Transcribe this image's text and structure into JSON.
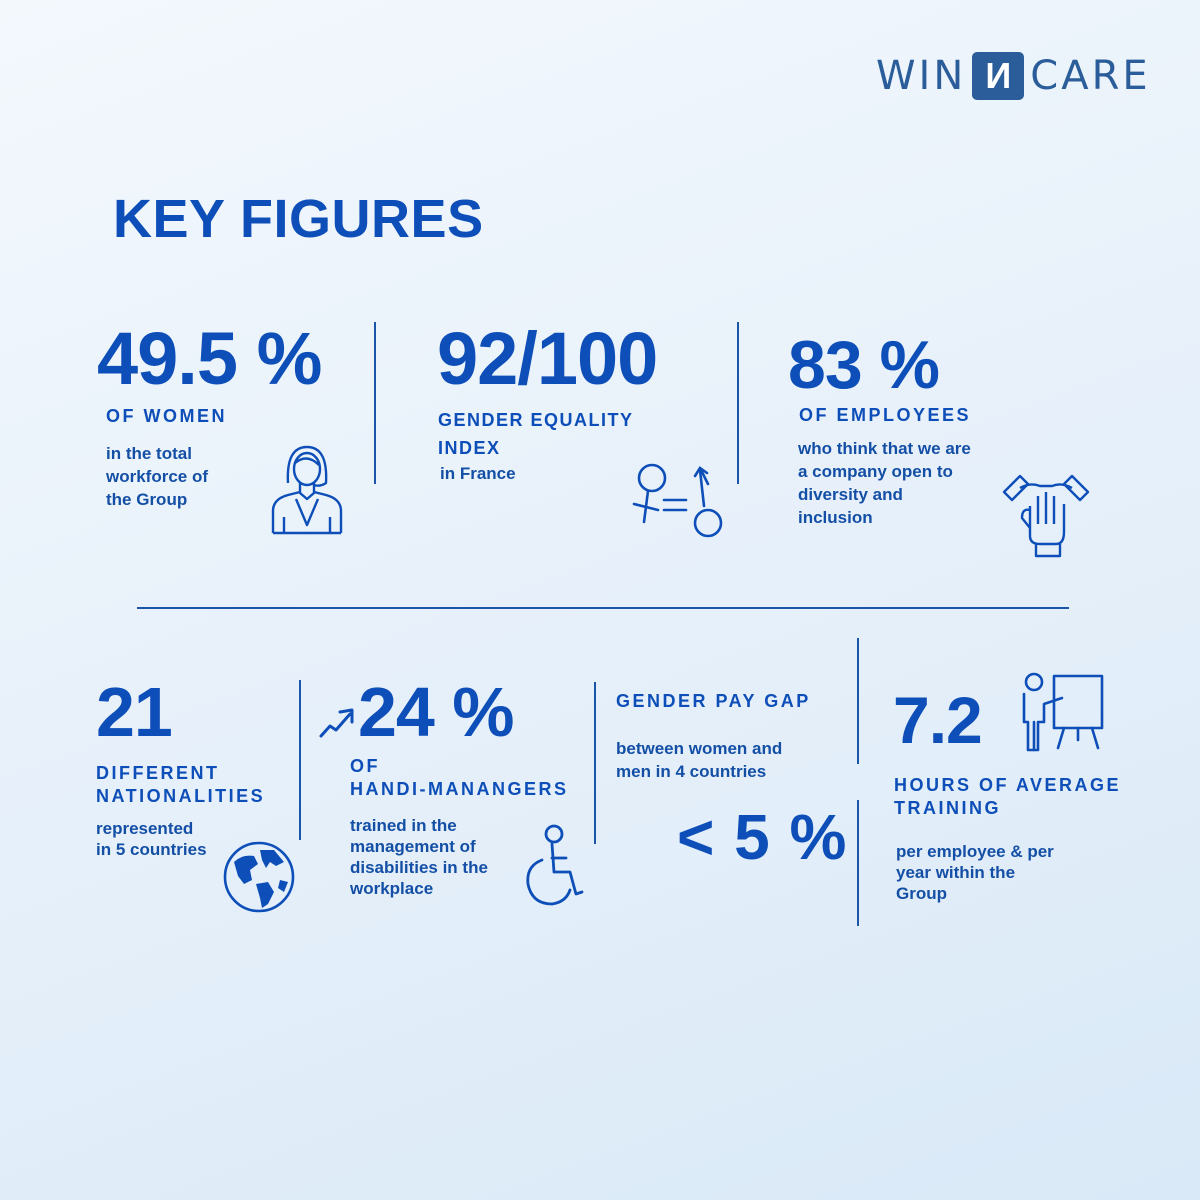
{
  "brand": {
    "left": "WIN",
    "mark": "И",
    "right": "CARE"
  },
  "title": "KEY FIGURES",
  "stats": [
    {
      "value": "49.5 %",
      "label": "OF WOMEN",
      "desc_lines": [
        "in the total",
        "workforce of",
        "the Group"
      ],
      "icon": "woman-icon"
    },
    {
      "value": "92/100",
      "label_lines": [
        "GENDER EQUALITY",
        "INDEX"
      ],
      "desc_lines": [
        "in France"
      ],
      "icon": "gender-equality-icon"
    },
    {
      "value": "83 %",
      "label": "OF EMPLOYEES",
      "desc_lines": [
        "who think that we are",
        "a company open to",
        "diversity and",
        "inclusion"
      ],
      "icon": "hands-together-icon"
    },
    {
      "value": "21",
      "label_lines": [
        "DIFFERENT",
        "NATIONALITIES"
      ],
      "desc_lines": [
        "represented",
        "in 5 countries"
      ],
      "icon": "globe-icon"
    },
    {
      "value": "24 %",
      "label_lines": [
        "OF",
        "HANDI-MANANGERS"
      ],
      "desc_lines": [
        "trained in the",
        "management of",
        "disabilities in the",
        "workplace"
      ],
      "icon": "wheelchair-icon"
    },
    {
      "value": "< 5 %",
      "label": "GENDER PAY GAP",
      "desc_lines": [
        "between women and",
        "men in 4 countries"
      ],
      "icon": "none"
    },
    {
      "value": "7.2",
      "label_lines": [
        "HOURS OF AVERAGE",
        "TRAINING"
      ],
      "desc_lines": [
        "per employee & per",
        "year within the",
        "Group"
      ],
      "icon": "trainer-board-icon"
    }
  ],
  "colors": {
    "primary": "#0d4eb8",
    "brand": "#2a5d99"
  }
}
